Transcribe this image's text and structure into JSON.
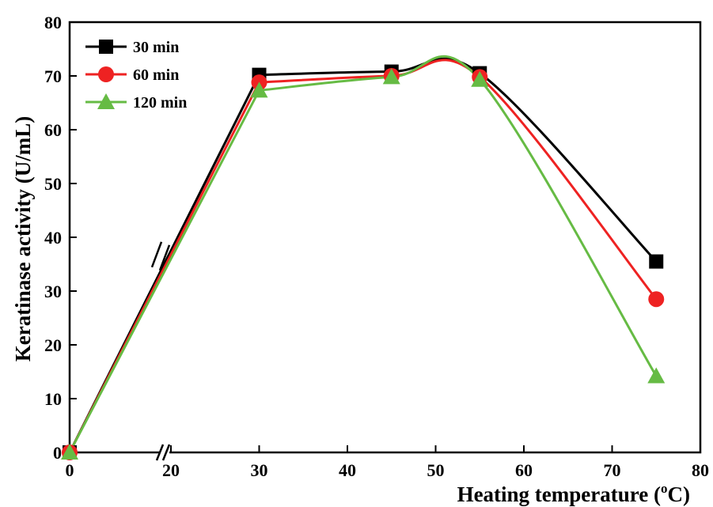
{
  "chart_data": {
    "type": "line",
    "xlabel": "Heating temperature (",
    "xlabel_sup": "o",
    "xlabel_unit": "C)",
    "ylabel": "Keratinase activity (U/mL)",
    "xlim": [
      0,
      80
    ],
    "ylim": [
      0,
      80
    ],
    "x_axis_break": [
      2,
      20
    ],
    "x_ticks": [
      "0",
      "20",
      "30",
      "40",
      "50",
      "60",
      "70",
      "80"
    ],
    "y_ticks": [
      "0",
      "10",
      "20",
      "30",
      "40",
      "50",
      "60",
      "70",
      "80"
    ],
    "grid": false,
    "legend_position": "top-left",
    "x": [
      0,
      30,
      45,
      55,
      75
    ],
    "series": [
      {
        "name": "30 min",
        "marker": "square",
        "color": "#000000",
        "values": [
          0,
          70.2,
          70.8,
          70.5,
          35.5
        ]
      },
      {
        "name": "60 min",
        "marker": "circle",
        "color": "#ee2222",
        "values": [
          0,
          68.8,
          70.0,
          69.8,
          28.5
        ]
      },
      {
        "name": "120 min",
        "marker": "triangle",
        "color": "#66bb44",
        "values": [
          0,
          67.3,
          69.8,
          69.3,
          14.2
        ]
      }
    ]
  }
}
